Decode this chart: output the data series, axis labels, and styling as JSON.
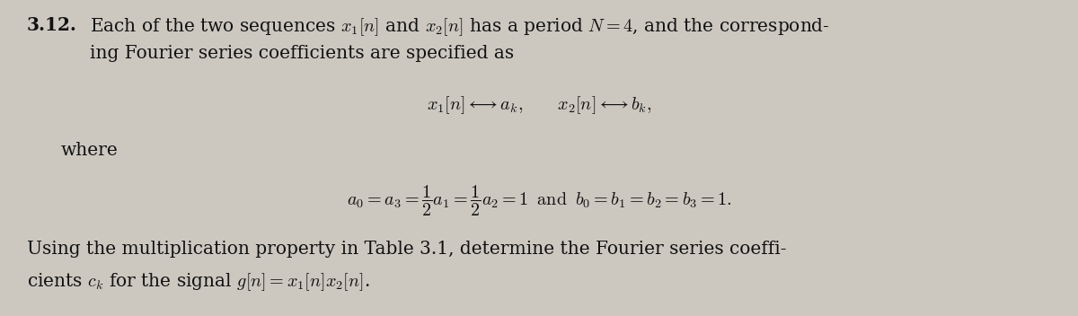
{
  "background_color": "#ccc8c0",
  "text_color": "#111111",
  "fig_width": 12.0,
  "fig_height": 3.52,
  "dpi": 100,
  "problem_number": "3.12.",
  "line1": "Each of the two sequences $x_1[n]$ and $x_2[n]$ has a period $N = 4$, and the correspond-",
  "line2": "ing Fourier series coefficients are specified as",
  "line3": "$x_1[n] \\longleftrightarrow a_k, \\qquad x_2[n] \\longleftrightarrow b_k,$",
  "where_text": "where",
  "eq_line": "$a_0 = a_3 = \\dfrac{1}{2}a_1 = \\dfrac{1}{2}a_2 = 1 \\;\\; \\mathrm{and} \\;\\; b_0 = b_1 = b_2 = b_3 = 1.$",
  "last_line1": "Using the multiplication property in Table 3.1, determine the Fourier series coeffi-",
  "last_line2": "cients $c_k$ for the signal $g[n] = x_1[n]x_2[n]$."
}
